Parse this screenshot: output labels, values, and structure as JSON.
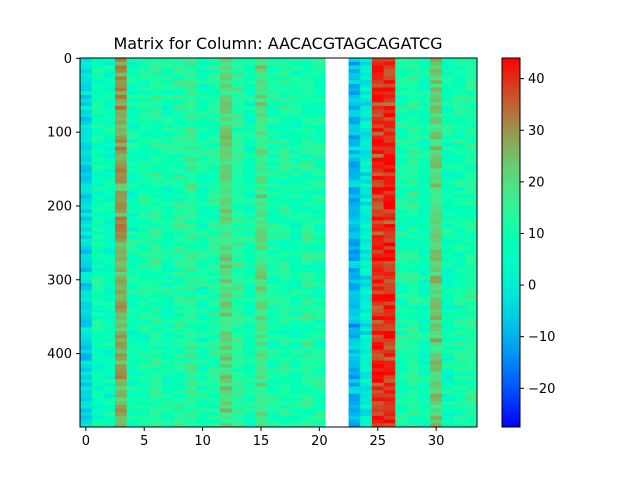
{
  "chart_data": {
    "type": "heatmap",
    "title": "Matrix for Column: AACACGTAGCAGATCG",
    "xlabel": "",
    "ylabel": "",
    "n_cols": 34,
    "n_rows": 500,
    "xlim": [
      -0.5,
      33.5
    ],
    "ylim": [
      499.5,
      -0.5
    ],
    "x_ticks": [
      0,
      5,
      10,
      15,
      20,
      25,
      30
    ],
    "y_ticks": [
      0,
      100,
      200,
      300,
      400
    ],
    "colormap": "rainbow",
    "color_range": [
      -27.5,
      44
    ],
    "colorbar_ticks": [
      -20,
      -10,
      0,
      10,
      20,
      30,
      40
    ],
    "missing_columns": [
      21,
      22
    ],
    "column_means": [
      -4,
      8,
      6,
      28,
      8,
      10,
      12,
      9,
      12,
      14,
      9,
      11,
      20,
      13,
      9,
      19,
      10,
      11,
      9,
      12,
      10,
      null,
      null,
      -8,
      0,
      40,
      40,
      10,
      12,
      8,
      22,
      8,
      10,
      12
    ],
    "grid": false,
    "legend": "none"
  }
}
